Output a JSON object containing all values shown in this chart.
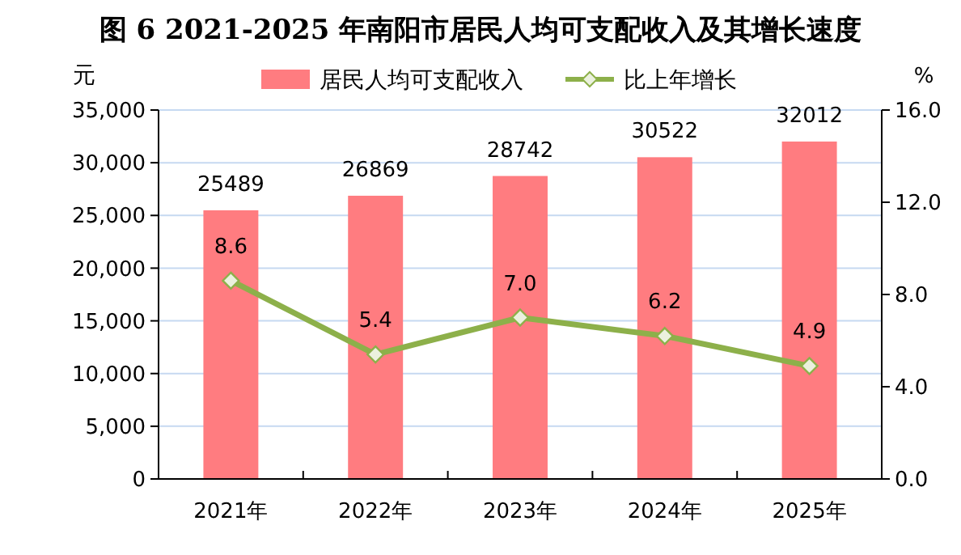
{
  "chart_data": {
    "type": "bar",
    "title": "图 6   2021-2025 年南阳市居民人均可支配收入及其增长速度",
    "ylabel": "元",
    "y2label": "%",
    "categories": [
      "2021年",
      "2022年",
      "2023年",
      "2024年",
      "2025年"
    ],
    "series": [
      {
        "name": "居民人均可支配收入",
        "color": "#ff7c80",
        "values": [
          25489,
          26869,
          28742,
          30522,
          32012
        ]
      },
      {
        "name": "比上年增长",
        "type": "line",
        "axis": "y2",
        "color": "#8db04a",
        "values": [
          8.6,
          5.4,
          7.0,
          6.2,
          4.9
        ],
        "value_labels": [
          "8.6",
          "5.4",
          "7.0",
          "6.2",
          "4.9"
        ]
      }
    ],
    "ylim": [
      0,
      35000
    ],
    "yticks": [
      {
        "value": 0,
        "label": "0"
      },
      {
        "value": 5000,
        "label": "5,000"
      },
      {
        "value": 10000,
        "label": "10,000"
      },
      {
        "value": 15000,
        "label": "15,000"
      },
      {
        "value": 20000,
        "label": "20,000"
      },
      {
        "value": 25000,
        "label": "25,000"
      },
      {
        "value": 30000,
        "label": "30,000"
      },
      {
        "value": 35000,
        "label": "35,000"
      }
    ],
    "y2lim": [
      0,
      16
    ],
    "y2ticks": [
      {
        "value": 0,
        "label": "0.0"
      },
      {
        "value": 4,
        "label": "4.0"
      },
      {
        "value": 8,
        "label": "8.0"
      },
      {
        "value": 12,
        "label": "12.0"
      },
      {
        "value": 16,
        "label": "16.0"
      }
    ],
    "data_labels": true,
    "grid": "y",
    "legend": "top",
    "marker": "diamond",
    "line_style": "solid"
  }
}
